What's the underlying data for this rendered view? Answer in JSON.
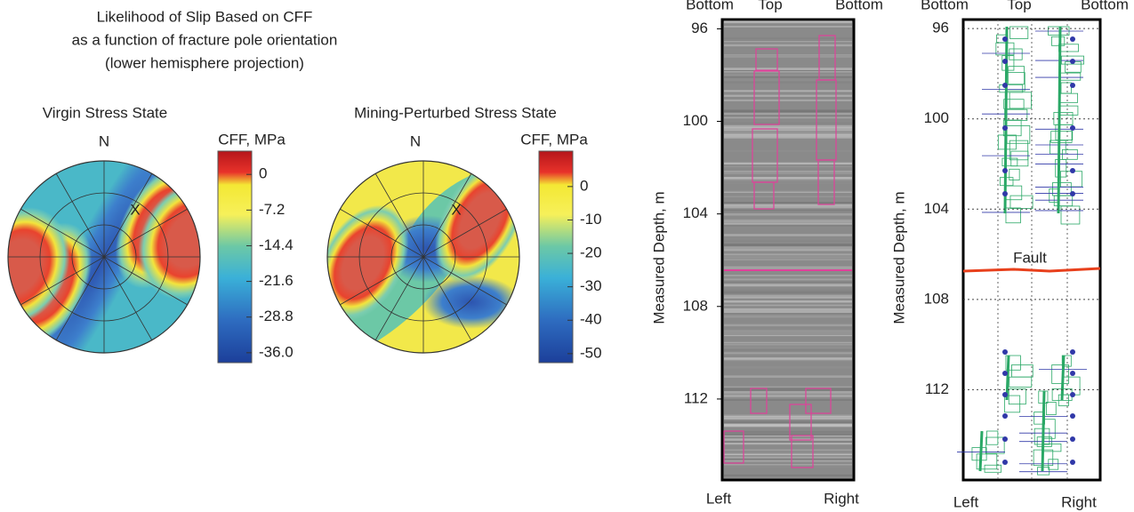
{
  "title": [
    "Likelihood of Slip Based on CFF",
    "as a function of fracture pole orientation",
    "(lower hemisphere projection)"
  ],
  "stereonets": [
    {
      "label": "Virgin Stress State",
      "north": "N",
      "marker": "X",
      "colorbar": {
        "label": "CFF, MPa",
        "lim": [
          -38,
          4.7
        ],
        "ticks": [
          0,
          -7.2,
          -14.4,
          -21.6,
          -28.8,
          {
            "value": -36,
            "label": "-36.0"
          }
        ]
      }
    },
    {
      "label": "Mining-Perturbed Stress State",
      "north": "N",
      "marker": "X",
      "colorbar": {
        "label": "CFF, MPa",
        "lim": [
          -52.7,
          10.6
        ],
        "ticks": [
          0,
          -10,
          -20,
          -30,
          -40,
          -50
        ]
      }
    }
  ],
  "logs": [
    {
      "ylabel": "Measured Depth, m",
      "ylim": [
        95.6,
        115.5
      ],
      "yticks": [
        96,
        100,
        104,
        108,
        112
      ],
      "top_labels": [
        "Bottom",
        "Top",
        "Bottom"
      ],
      "bottom_labels": [
        "Left",
        "Right"
      ]
    },
    {
      "ylabel": "Measured Depth, m",
      "ylim": [
        95.6,
        116.0
      ],
      "yticks": [
        96,
        100,
        104,
        108,
        112
      ],
      "top_labels": [
        "Bottom",
        "Top",
        "Bottom"
      ],
      "bottom_labels": [
        "Left",
        "Right"
      ],
      "annotation": "Fault"
    }
  ]
}
